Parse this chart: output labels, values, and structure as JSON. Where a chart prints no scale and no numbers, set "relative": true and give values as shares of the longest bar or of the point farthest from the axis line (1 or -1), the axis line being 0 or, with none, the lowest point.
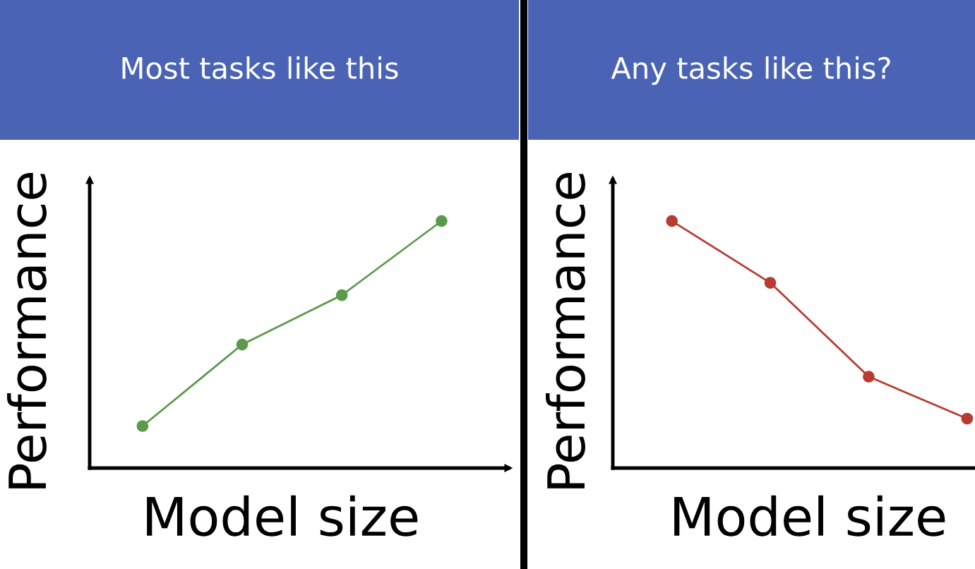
{
  "chart_data": [
    {
      "type": "line",
      "title": "Most tasks like this",
      "xlabel": "Model size",
      "ylabel": "Performance",
      "categories": [
        null,
        null,
        null,
        null
      ],
      "relative": true,
      "marker": "circle",
      "series": [
        {
          "color": "#5b9a4b",
          "values": [
            0.17,
            0.5,
            0.7,
            1
          ]
        }
      ]
    },
    {
      "type": "line",
      "title": "Any tasks like this?",
      "xlabel": "Model size",
      "ylabel": "Performance",
      "categories": [
        null,
        null,
        null,
        null
      ],
      "relative": true,
      "marker": "circle",
      "series": [
        {
          "color": "#b83a30",
          "values": [
            1,
            0.75,
            0.37,
            0.2
          ]
        }
      ]
    }
  ]
}
